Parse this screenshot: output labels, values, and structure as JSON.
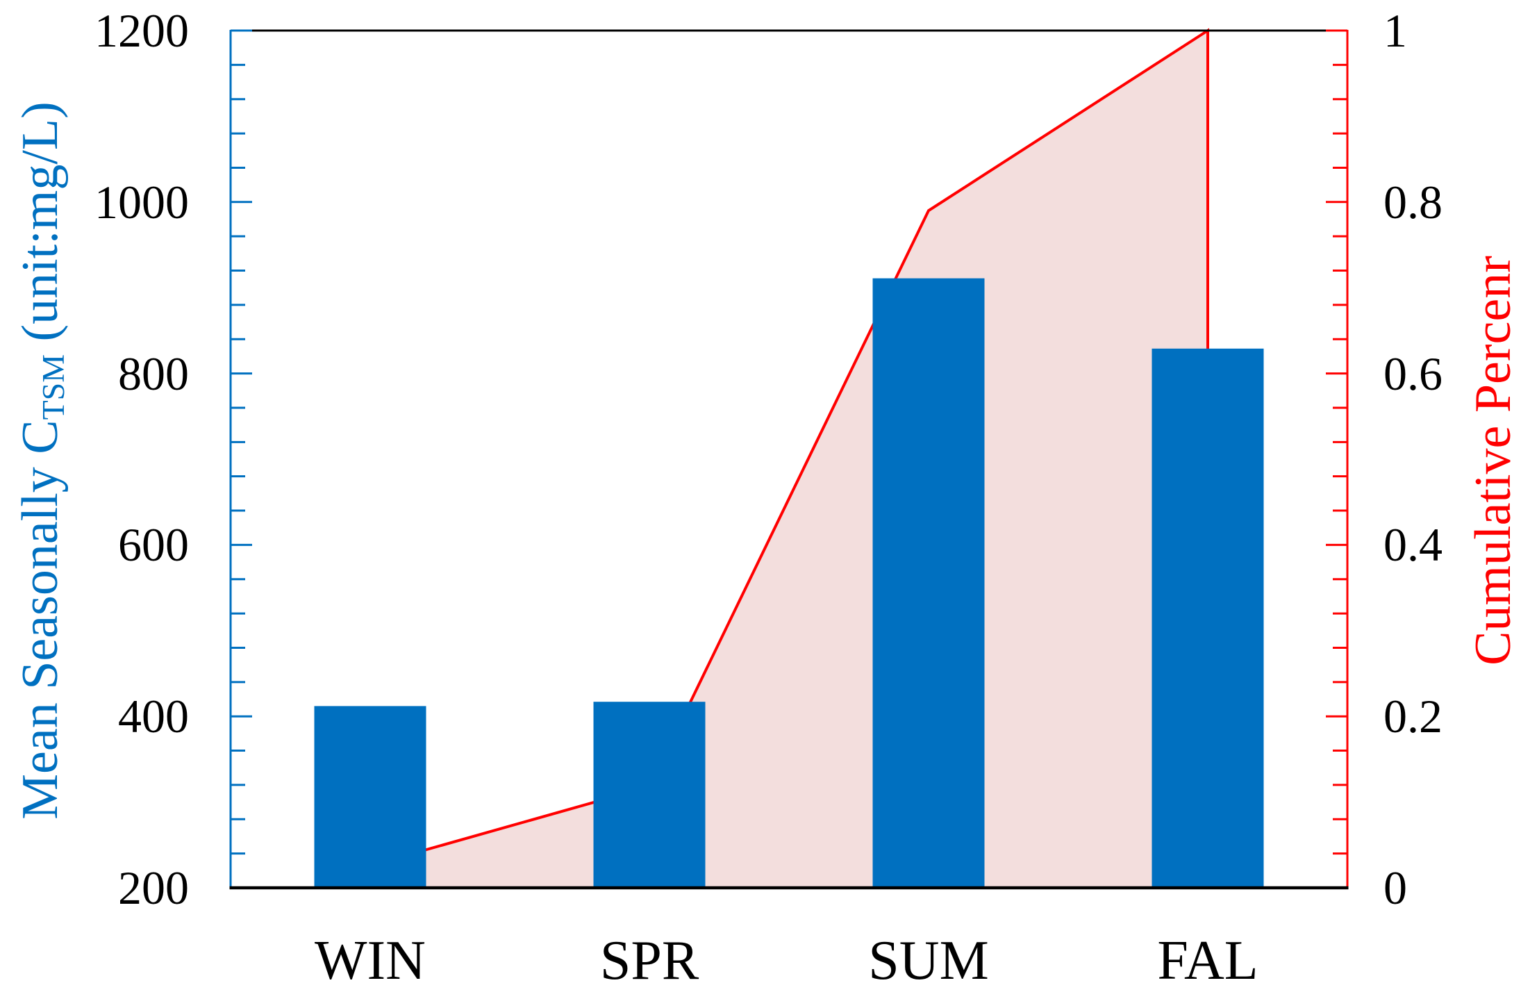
{
  "chart_data": {
    "type": "bar",
    "subtype": "pareto-bar-with-cumulative-line-and-area",
    "categories": [
      "WIN",
      "SPR",
      "SUM",
      "FAL"
    ],
    "series": [
      {
        "name": "Mean Seasonally CTSM (unit:mg/L)",
        "type": "bar",
        "axis": "left",
        "values": [
          412,
          417,
          911,
          829
        ]
      },
      {
        "name": "Cumulative Percenr",
        "type": "line-area",
        "axis": "right",
        "values": [
          0.026,
          0.118,
          0.79,
          1.0
        ]
      }
    ],
    "title": "",
    "xlabel": "",
    "x_tick_labels": [
      "WIN",
      "SPR",
      "SUM",
      "FAL"
    ],
    "left_axis": {
      "title_main": "Mean Seasonally C",
      "title_sub": "TSM",
      "title_suffix": " (unit:mg/L)",
      "min": 200,
      "max": 1200,
      "major_step": 200,
      "minor_step": 40,
      "tick_labels": [
        "200",
        "400",
        "600",
        "800",
        "1000",
        "1200"
      ],
      "color": "#0070c0"
    },
    "right_axis": {
      "title": "Cumulative Percenr",
      "min": 0,
      "max": 1,
      "major_step": 0.2,
      "minor_step": 0.04,
      "tick_labels": [
        "0",
        "0.2",
        "0.4",
        "0.6",
        "0.8",
        "1"
      ],
      "color": "#ff0000"
    },
    "legend": "none",
    "grid": false,
    "styles": {
      "bar_color": "#0070c0",
      "line_color": "#ff0000",
      "area_color": "#f3dedd",
      "spine_top_bottom_color": "#000000",
      "x_label_color": "#000000"
    }
  }
}
